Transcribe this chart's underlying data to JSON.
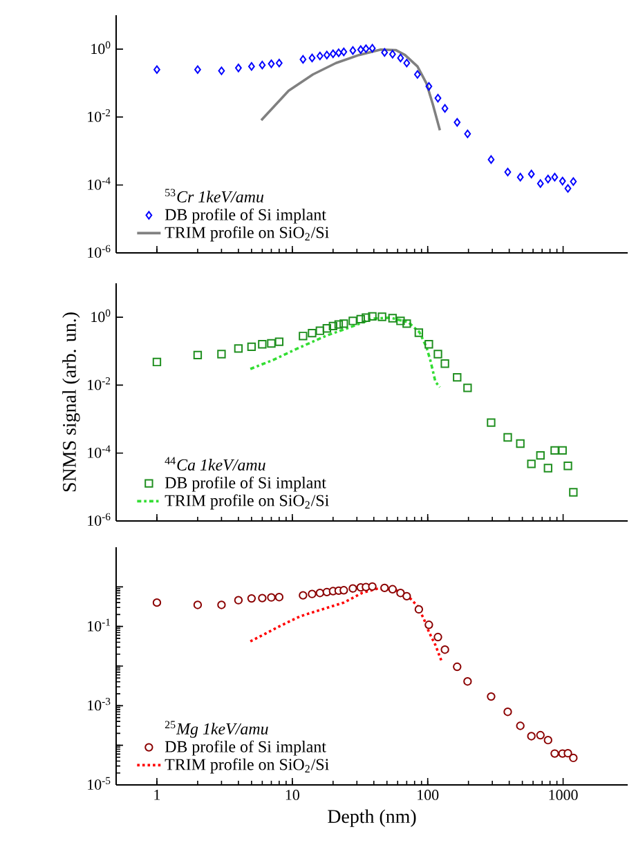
{
  "chart_data": [
    {
      "type": "scatter",
      "xlim": [
        0.5,
        3000
      ],
      "ylim": [
        1e-06,
        10
      ],
      "log": "xy",
      "tick_labels": "y",
      "legend": "bottom left",
      "legend_title": "$^{53}$*Cr 1keV/amu*",
      "xticks": [
        1,
        10,
        100,
        1000
      ],
      "yticks": [
        {
          "value": 1e-06,
          "label": "10$^{-6}$"
        },
        {
          "value": 0.0001,
          "label": "10$^{-4}$"
        },
        {
          "value": 0.01,
          "label": "10$^{-2}$"
        },
        {
          "value": 1,
          "label": "10$^{0}$"
        }
      ],
      "series": [
        {
          "name": "DB profile of Si implant",
          "type": "scatter",
          "marker": "diamond",
          "color": "#0000ff",
          "x": [
            1,
            2,
            3,
            4,
            5,
            6,
            7,
            8,
            12,
            14,
            16,
            18,
            20,
            22,
            24,
            28,
            32,
            35,
            39,
            48,
            55,
            63,
            70,
            84,
            102,
            119,
            134,
            165,
            197,
            294,
            390,
            483,
            583,
            680,
            774,
            867,
            990,
            1085,
            1190
          ],
          "values": [
            0.25,
            0.25,
            0.23,
            0.28,
            0.31,
            0.34,
            0.37,
            0.39,
            0.5,
            0.55,
            0.63,
            0.67,
            0.73,
            0.78,
            0.83,
            0.91,
            0.97,
            1.03,
            1.06,
            0.8,
            0.71,
            0.55,
            0.39,
            0.18,
            0.08,
            0.036,
            0.018,
            0.007,
            0.0032,
            0.00056,
            0.00024,
            0.00017,
            0.00021,
            0.00011,
            0.00015,
            0.00017,
            0.00013,
            7.9e-05,
            0.000126
          ]
        },
        {
          "name": "TRIM profile on SiO$_{2}$/Si",
          "type": "line",
          "line_style": "solid",
          "color": "#808080",
          "x": [
            5.9,
            9.4,
            14.2,
            21,
            31,
            45,
            58,
            68,
            84,
            98,
            109,
            123
          ],
          "values": [
            0.0081,
            0.06,
            0.18,
            0.39,
            0.67,
            0.97,
            0.94,
            0.67,
            0.31,
            0.097,
            0.024,
            0.0041
          ]
        }
      ]
    },
    {
      "type": "scatter",
      "xlim": [
        0.5,
        3000
      ],
      "ylim": [
        1e-06,
        10
      ],
      "log": "xy",
      "tick_labels": "y",
      "legend": "bottom left",
      "legend_title": "$^{44}$*Ca 1keV/amu*",
      "ylabel": "SNMS signal (arb. un.)",
      "xticks": [
        1,
        10,
        100,
        1000
      ],
      "yticks": [
        {
          "value": 1e-06,
          "label": "10$^{-6}$"
        },
        {
          "value": 0.0001,
          "label": "10$^{-4}$"
        },
        {
          "value": 0.01,
          "label": "10$^{-2}$"
        },
        {
          "value": 1,
          "label": "10$^{0}$"
        }
      ],
      "series": [
        {
          "name": "DB profile of Si implant",
          "type": "scatter",
          "marker": "square",
          "color": "#1f8f1f",
          "x": [
            1,
            2,
            3,
            4,
            5,
            6,
            7,
            8,
            12,
            14,
            16,
            18,
            20,
            22,
            24,
            28,
            32,
            35,
            39,
            46,
            55,
            63,
            70,
            86,
            102,
            119,
            134,
            165,
            197,
            294,
            390,
            483,
            583,
            680,
            774,
            867,
            990,
            1085,
            1190
          ],
          "values": [
            0.048,
            0.077,
            0.082,
            0.12,
            0.135,
            0.16,
            0.17,
            0.19,
            0.28,
            0.34,
            0.4,
            0.47,
            0.55,
            0.61,
            0.65,
            0.78,
            0.88,
            0.97,
            1.06,
            1.03,
            0.94,
            0.78,
            0.65,
            0.35,
            0.16,
            0.082,
            0.043,
            0.017,
            0.0083,
            0.00079,
            0.00029,
            0.00019,
            4.8e-05,
            8.5e-05,
            3.6e-05,
            0.00012,
            0.00012,
            4.2e-05,
            7e-06
          ]
        },
        {
          "name": "TRIM profile on SiO$_{2}$/Si",
          "type": "line",
          "line_style": "dashdot",
          "color": "#33dd33",
          "x": [
            4.9,
            7.2,
            11.4,
            18,
            29,
            39,
            53,
            72,
            87,
            98,
            105,
            114,
            123
          ],
          "values": [
            0.03,
            0.055,
            0.13,
            0.29,
            0.57,
            0.91,
            0.97,
            0.71,
            0.36,
            0.13,
            0.051,
            0.0126,
            0.0087
          ]
        }
      ]
    },
    {
      "type": "scatter",
      "xlim": [
        0.5,
        3000
      ],
      "ylim": [
        1e-05,
        10
      ],
      "log": "xy",
      "legend": "bottom left",
      "legend_title": "$^{25}$*Mg 1keV/amu*",
      "xlabel": "Depth (nm)",
      "xticks": [
        1,
        10,
        100,
        1000
      ],
      "yticks": [
        {
          "value": 1e-05,
          "label": "10$^{-5}$"
        },
        {
          "value": 0.0001,
          "label": null
        },
        {
          "value": 0.001,
          "label": "10$^{-3}$"
        },
        {
          "value": 0.01,
          "label": null
        },
        {
          "value": 0.1,
          "label": "10$^{-1}$"
        },
        {
          "value": 1,
          "label": null
        }
      ],
      "series": [
        {
          "name": "DB profile of Si implant",
          "type": "scatter",
          "marker": "circle",
          "color": "#8b0000",
          "x": [
            1,
            2,
            3,
            4,
            5,
            6,
            7,
            8,
            12,
            14,
            16,
            18,
            20,
            22,
            24,
            28,
            32,
            35,
            39,
            48,
            55,
            63,
            70,
            86,
            102,
            119,
            134,
            165,
            197,
            294,
            390,
            483,
            583,
            680,
            774,
            867,
            990,
            1085,
            1190
          ],
          "values": [
            0.4,
            0.35,
            0.35,
            0.46,
            0.51,
            0.52,
            0.54,
            0.55,
            0.61,
            0.66,
            0.7,
            0.74,
            0.78,
            0.8,
            0.82,
            0.91,
            0.97,
            0.99,
            1.02,
            0.94,
            0.87,
            0.7,
            0.58,
            0.27,
            0.11,
            0.054,
            0.026,
            0.0096,
            0.0041,
            0.0017,
            0.0007,
            0.00031,
            0.00017,
            0.00018,
            0.000135,
            6.2e-05,
            6.2e-05,
            6.3e-05,
            4.8e-05
          ]
        },
        {
          "name": "TRIM profile on SiO$_{2}$/Si",
          "type": "line",
          "line_style": "dotted",
          "color": "#ff0000",
          "x": [
            4.9,
            6.4,
            8,
            11.4,
            16.6,
            24,
            33,
            42,
            57,
            72,
            84,
            94,
            102,
            114,
            128
          ],
          "values": [
            0.042,
            0.067,
            0.1,
            0.18,
            0.27,
            0.4,
            0.71,
            0.89,
            0.85,
            0.57,
            0.33,
            0.15,
            0.073,
            0.034,
            0.012
          ]
        }
      ]
    }
  ]
}
